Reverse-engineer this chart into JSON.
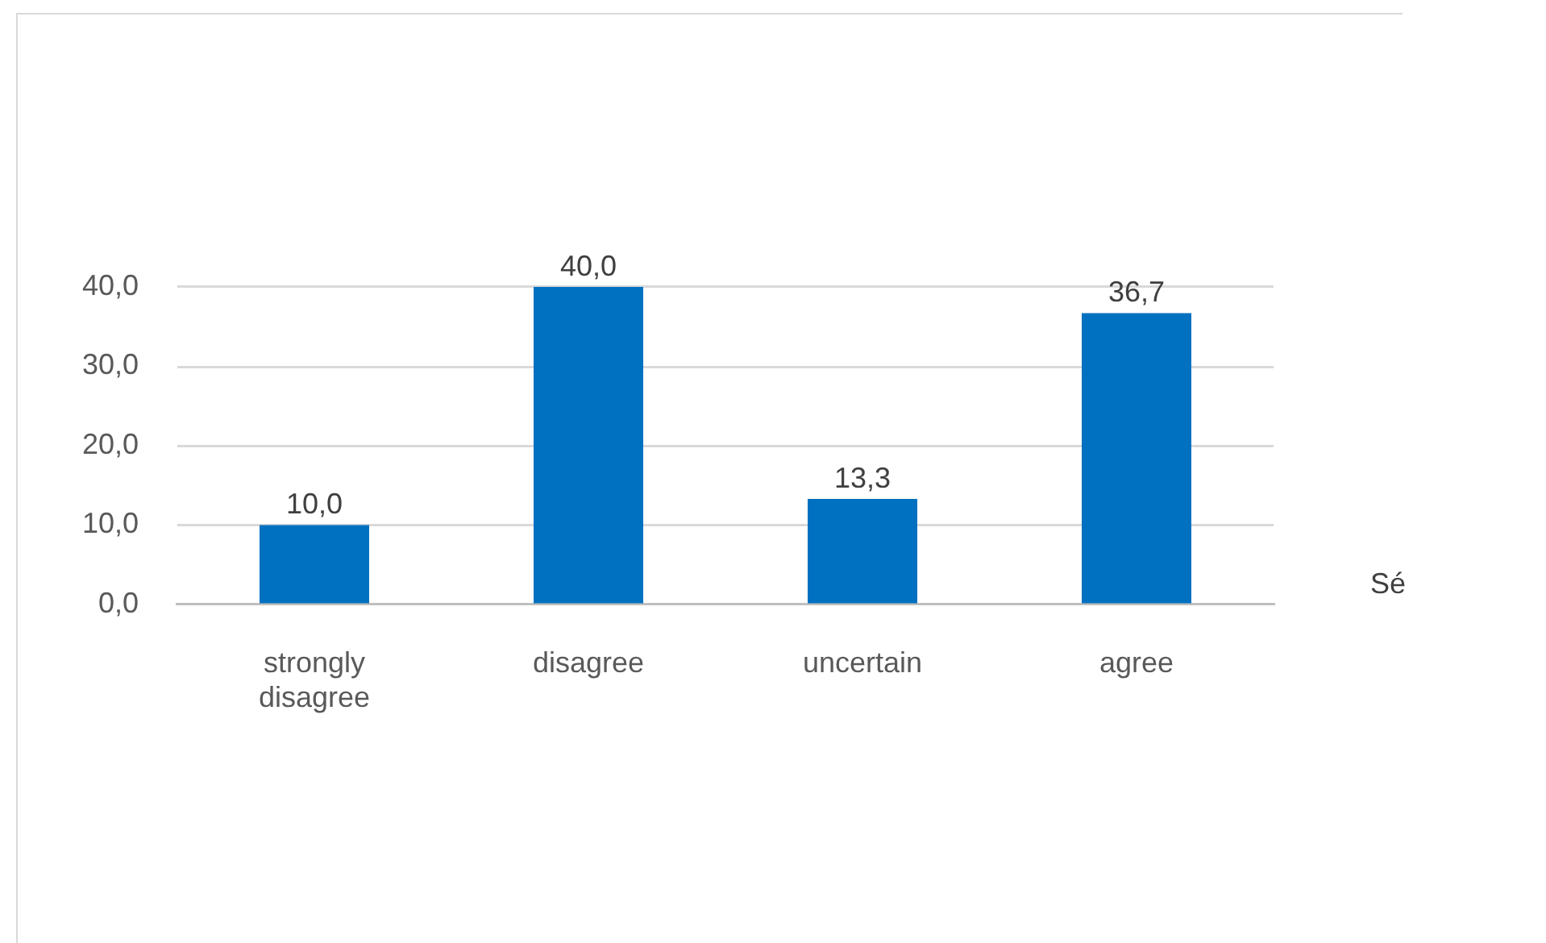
{
  "chart_data": {
    "type": "bar",
    "categories": [
      "strongly disagree",
      "disagree",
      "uncertain",
      "agree"
    ],
    "values": [
      10,
      40,
      13.3,
      36.7
    ],
    "color": "#0070c0",
    "value_labels": [
      "10,0",
      "40,0",
      "13,3",
      "36,7"
    ],
    "ylim": [
      0,
      40
    ],
    "yticks": [
      {
        "value": 0,
        "label": "0,0"
      },
      {
        "value": 10,
        "label": "10,0"
      },
      {
        "value": 20,
        "label": "20,0"
      },
      {
        "value": 30,
        "label": "30,0"
      },
      {
        "value": 40,
        "label": "40,0"
      }
    ],
    "grid": "y",
    "annotations": [
      "Sé"
    ]
  }
}
